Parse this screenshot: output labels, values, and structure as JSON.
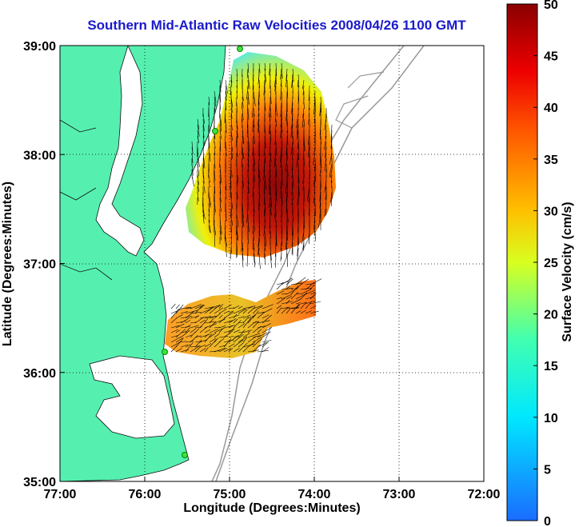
{
  "title": "Southern Mid-Atlantic Raw Velocities 2008/04/26 1100 GMT",
  "map": {
    "xlabel": "Longitude (Degrees:Minutes)",
    "ylabel": "Latitude (Degrees:Minutes)",
    "x_ticks": [
      "77:00",
      "76:00",
      "75:00",
      "74:00",
      "73:00",
      "72:00"
    ],
    "y_ticks": [
      "39:00",
      "38:00",
      "37:00",
      "36:00",
      "35:00"
    ],
    "lon_range": [
      -77,
      -72
    ],
    "lat_range": [
      35,
      39
    ],
    "grid": true,
    "land_color": "#55f0b0"
  },
  "colorbar": {
    "label": "Surface Velocity (cm/s)",
    "ticks": [
      "50",
      "45",
      "40",
      "35",
      "30",
      "25",
      "20",
      "15",
      "10",
      "5",
      "0"
    ],
    "range": [
      0,
      50
    ]
  }
}
